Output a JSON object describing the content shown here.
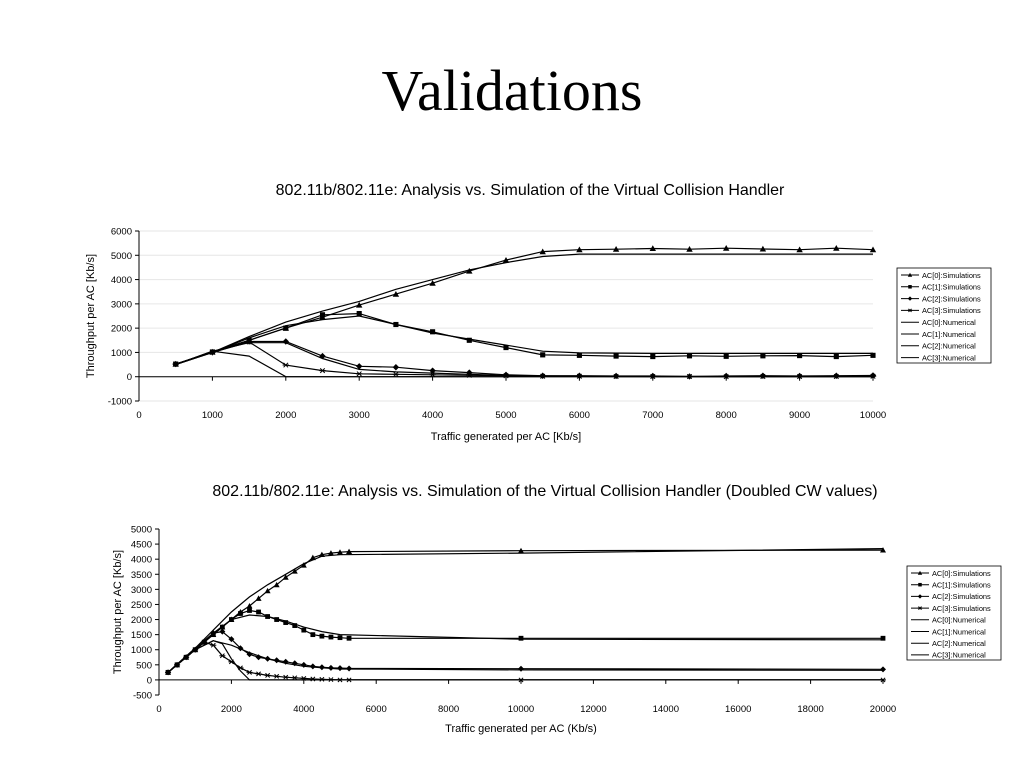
{
  "slide": {
    "title": "Validations"
  },
  "chart_data": [
    {
      "type": "line",
      "title": "802.11b/802.11e: Analysis vs. Simulation of the Virtual Collision Handler",
      "xlabel": "Traffic generated per AC [Kb/s]",
      "ylabel": "Throughput per AC [Kb/s]",
      "xlim": [
        0,
        10000
      ],
      "ylim": [
        -1000,
        6000
      ],
      "xticks": [
        "0",
        "1000",
        "2000",
        "3000",
        "4000",
        "5000",
        "6000",
        "7000",
        "8000",
        "9000",
        "10000"
      ],
      "yticks": [
        "-1000",
        "0",
        "1000",
        "2000",
        "3000",
        "4000",
        "5000",
        "6000"
      ],
      "grid": true,
      "legend_position": "right",
      "series": [
        {
          "name": "AC[0]:Simulations",
          "marker": "triangle",
          "x": [
            500,
            1000,
            1500,
            2000,
            2500,
            3000,
            3500,
            4000,
            4500,
            5000,
            5500,
            6000,
            6500,
            7000,
            7500,
            8000,
            8500,
            9000,
            9500,
            10000
          ],
          "y": [
            520,
            1020,
            1500,
            2000,
            2450,
            2950,
            3400,
            3850,
            4350,
            4800,
            5150,
            5230,
            5250,
            5280,
            5250,
            5290,
            5260,
            5230,
            5290,
            5230
          ]
        },
        {
          "name": "AC[1]:Simulations",
          "marker": "square",
          "x": [
            500,
            1000,
            1500,
            2000,
            2500,
            3000,
            3500,
            4000,
            4500,
            5000,
            5500,
            6000,
            6500,
            7000,
            7500,
            8000,
            8500,
            9000,
            9500,
            10000
          ],
          "y": [
            520,
            1020,
            1500,
            2000,
            2550,
            2600,
            2150,
            1850,
            1500,
            1200,
            900,
            880,
            850,
            830,
            860,
            840,
            860,
            870,
            830,
            880
          ]
        },
        {
          "name": "AC[2]:Simulations",
          "marker": "diamond",
          "x": [
            500,
            1000,
            1500,
            2000,
            2500,
            3000,
            3500,
            4000,
            4500,
            5000,
            5500,
            6000,
            6500,
            7000,
            7500,
            8000,
            8500,
            9000,
            9500,
            10000
          ],
          "y": [
            520,
            1000,
            1450,
            1450,
            850,
            430,
            390,
            250,
            170,
            80,
            40,
            40,
            30,
            30,
            10,
            30,
            40,
            30,
            40,
            50
          ]
        },
        {
          "name": "AC[3]:Simulations",
          "marker": "star",
          "x": [
            500,
            1000,
            1500,
            2000,
            2500,
            3000,
            3500,
            4000,
            4500,
            5000,
            5500,
            6000,
            6500,
            7000,
            7500,
            8000,
            8500,
            9000,
            9500,
            10000
          ],
          "y": [
            520,
            1000,
            1430,
            480,
            250,
            120,
            100,
            80,
            60,
            40,
            20,
            20,
            10,
            10,
            10,
            0,
            10,
            10,
            10,
            20
          ]
        },
        {
          "name": "AC[0]:Numerical",
          "marker": "none",
          "x": [
            500,
            1000,
            1500,
            2000,
            2500,
            3000,
            3500,
            4000,
            4500,
            5000,
            5500,
            6000,
            7000,
            8000,
            9000,
            10000
          ],
          "y": [
            500,
            1000,
            1650,
            2250,
            2700,
            3100,
            3600,
            4000,
            4400,
            4700,
            4950,
            5050,
            5050,
            5050,
            5050,
            5050
          ]
        },
        {
          "name": "AC[1]:Numerical",
          "marker": "none",
          "x": [
            500,
            1000,
            1500,
            2000,
            2500,
            3000,
            3500,
            4000,
            4500,
            5000,
            5500,
            6000,
            7000,
            8000,
            9000,
            10000
          ],
          "y": [
            500,
            1000,
            1600,
            2100,
            2350,
            2500,
            2150,
            1800,
            1550,
            1300,
            1050,
            980,
            960,
            960,
            960,
            960
          ]
        },
        {
          "name": "AC[2]:Numerical",
          "marker": "none",
          "x": [
            500,
            1000,
            1500,
            2000,
            2500,
            3000,
            3500,
            4000,
            4500,
            5000,
            5500,
            6000,
            7000,
            8000,
            9000,
            10000
          ],
          "y": [
            500,
            1050,
            1400,
            1400,
            750,
            300,
            200,
            150,
            100,
            50,
            30,
            20,
            10,
            10,
            10,
            10
          ]
        },
        {
          "name": "AC[3]:Numerical",
          "marker": "none",
          "x": [
            500,
            1000,
            1500,
            2000,
            2500,
            3000,
            4000,
            5000,
            6000,
            8000,
            10000
          ],
          "y": [
            500,
            1050,
            850,
            0,
            0,
            0,
            0,
            0,
            0,
            0,
            0
          ]
        }
      ]
    },
    {
      "type": "line",
      "title": "802.11b/802.11e: Analysis vs. Simulation of the Virtual Collision Handler (Doubled CW values)",
      "xlabel": "Traffic generated per AC (Kb/s)",
      "ylabel": "Throughput per AC [Kb/s]",
      "xlim": [
        0,
        20000
      ],
      "ylim": [
        -500,
        5000
      ],
      "xticks": [
        "0",
        "2000",
        "4000",
        "6000",
        "8000",
        "10000",
        "12000",
        "14000",
        "16000",
        "18000",
        "20000"
      ],
      "yticks": [
        "-500",
        "0",
        "500",
        "1000",
        "1500",
        "2000",
        "2500",
        "3000",
        "3500",
        "4000",
        "4500",
        "5000"
      ],
      "grid": false,
      "legend_position": "right",
      "series": [
        {
          "name": "AC[0]:Simulations",
          "marker": "triangle",
          "x": [
            250,
            500,
            750,
            1000,
            1250,
            1500,
            1750,
            2000,
            2250,
            2500,
            2750,
            3000,
            3250,
            3500,
            3750,
            4000,
            4250,
            4500,
            4750,
            5000,
            5250,
            10000,
            20000
          ],
          "y": [
            250,
            500,
            750,
            1000,
            1250,
            1500,
            1750,
            2000,
            2250,
            2450,
            2700,
            2950,
            3150,
            3400,
            3600,
            3800,
            4050,
            4150,
            4200,
            4230,
            4250,
            4280,
            4300
          ]
        },
        {
          "name": "AC[1]:Simulations",
          "marker": "square",
          "x": [
            250,
            500,
            750,
            1000,
            1250,
            1500,
            1750,
            2000,
            2250,
            2500,
            2750,
            3000,
            3250,
            3500,
            3750,
            4000,
            4250,
            4500,
            4750,
            5000,
            5250,
            10000,
            20000
          ],
          "y": [
            250,
            500,
            750,
            1000,
            1250,
            1500,
            1750,
            2000,
            2200,
            2300,
            2250,
            2100,
            2000,
            1900,
            1800,
            1650,
            1500,
            1450,
            1420,
            1400,
            1380,
            1380,
            1380
          ]
        },
        {
          "name": "AC[2]:Simulations",
          "marker": "diamond",
          "x": [
            250,
            500,
            750,
            1000,
            1250,
            1500,
            1750,
            2000,
            2250,
            2500,
            2750,
            3000,
            3250,
            3500,
            3750,
            4000,
            4250,
            4500,
            4750,
            5000,
            5250,
            10000,
            20000
          ],
          "y": [
            250,
            500,
            750,
            1000,
            1250,
            1550,
            1600,
            1350,
            1050,
            850,
            750,
            700,
            650,
            600,
            550,
            500,
            450,
            420,
            400,
            390,
            380,
            370,
            350
          ]
        },
        {
          "name": "AC[3]:Simulations",
          "marker": "star",
          "x": [
            250,
            500,
            750,
            1000,
            1250,
            1500,
            1750,
            2000,
            2250,
            2500,
            2750,
            3000,
            3250,
            3500,
            3750,
            4000,
            4250,
            4500,
            4750,
            5000,
            5250,
            10000,
            20000
          ],
          "y": [
            250,
            500,
            750,
            1000,
            1250,
            1150,
            800,
            600,
            400,
            250,
            200,
            150,
            120,
            90,
            70,
            50,
            30,
            20,
            10,
            0,
            0,
            0,
            0
          ]
        },
        {
          "name": "AC[0]:Numerical",
          "marker": "none",
          "x": [
            250,
            500,
            1000,
            1500,
            2000,
            2500,
            3000,
            3500,
            4000,
            4500,
            5000,
            10000,
            20000
          ],
          "y": [
            250,
            520,
            1050,
            1650,
            2250,
            2750,
            3150,
            3500,
            3850,
            4100,
            4150,
            4200,
            4350
          ]
        },
        {
          "name": "AC[1]:Numerical",
          "marker": "none",
          "x": [
            250,
            500,
            1000,
            1500,
            2000,
            2500,
            3000,
            3500,
            4000,
            4500,
            5000,
            10000,
            20000
          ],
          "y": [
            250,
            520,
            1050,
            1550,
            2000,
            2150,
            2100,
            1950,
            1750,
            1600,
            1500,
            1350,
            1330
          ]
        },
        {
          "name": "AC[2]:Numerical",
          "marker": "none",
          "x": [
            250,
            500,
            1000,
            1500,
            2000,
            2500,
            3000,
            3500,
            4000,
            4500,
            5000,
            10000,
            20000
          ],
          "y": [
            250,
            520,
            1000,
            1300,
            1150,
            900,
            700,
            550,
            450,
            400,
            360,
            330,
            320
          ]
        },
        {
          "name": "AC[3]:Numerical",
          "marker": "none",
          "x": [
            250,
            500,
            1000,
            1500,
            1750,
            2000,
            2250,
            2500,
            3000,
            5000,
            10000,
            20000
          ],
          "y": [
            250,
            520,
            1000,
            1300,
            1200,
            700,
            300,
            0,
            0,
            0,
            0,
            0
          ]
        }
      ]
    }
  ]
}
